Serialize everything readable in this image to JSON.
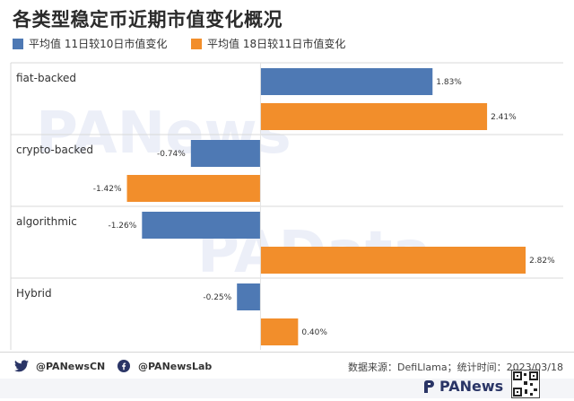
{
  "chart_data": {
    "type": "bar",
    "orientation": "horizontal",
    "title": "各类型稳定币近期市值变化概况",
    "categories": [
      "fiat-backed",
      "crypto-backed",
      "algorithmic",
      "Hybrid"
    ],
    "series": [
      {
        "name": "平均值 11日较10日市值变化",
        "color": "#4e79b4",
        "values": [
          1.83,
          -0.74,
          -1.26,
          -0.25
        ],
        "labels": [
          "1.83%",
          "-0.74%",
          "-1.26%",
          "-0.25%"
        ]
      },
      {
        "name": "平均值 18日较11日市值变化",
        "color": "#f28e2b",
        "values": [
          2.41,
          -1.42,
          2.82,
          0.4
        ],
        "labels": [
          "2.41%",
          "-1.42%",
          "2.82%",
          "0.40%"
        ]
      }
    ],
    "xlim": [
      -1.74,
      3.22
    ],
    "grid": false,
    "legend": "top-left"
  },
  "watermarks": [
    "PANews",
    "PAData"
  ],
  "footer": {
    "twitter": "@PANewsCN",
    "facebook": "@PANewsLab",
    "source": "数据来源：DefiLlama；统计时间：2023/03/18"
  },
  "brand": "PANews",
  "icons": {
    "twitter": "twitter-icon",
    "facebook": "facebook-icon",
    "brand": "panews-logo-icon",
    "qr": "qr-code-icon"
  }
}
